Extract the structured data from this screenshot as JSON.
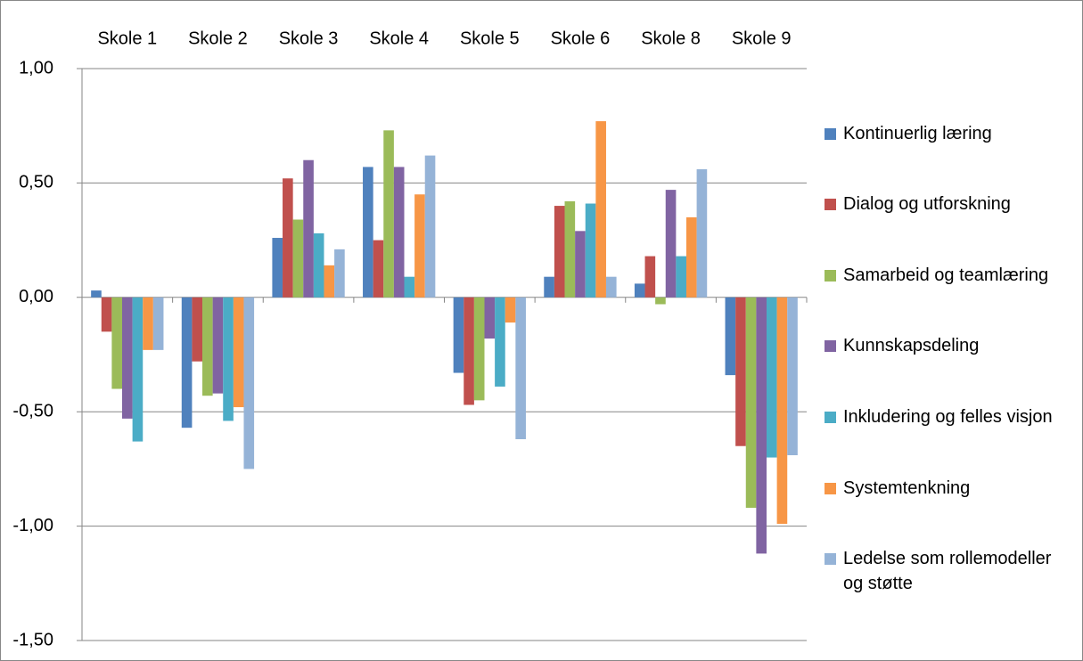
{
  "chart_data": {
    "type": "bar",
    "categories": [
      "Skole 1",
      "Skole 2",
      "Skole 3",
      "Skole 4",
      "Skole 5",
      "Skole 6",
      "Skole 8",
      "Skole 9"
    ],
    "series": [
      {
        "name": "Kontinuerlig læring",
        "color": "#4f81bd",
        "values": [
          0.03,
          -0.57,
          0.26,
          0.57,
          -0.33,
          0.09,
          0.06,
          -0.34
        ]
      },
      {
        "name": "Dialog og utforskning",
        "color": "#c0504d",
        "values": [
          -0.15,
          -0.28,
          0.52,
          0.25,
          -0.47,
          0.4,
          0.18,
          -0.65
        ]
      },
      {
        "name": "Samarbeid og teamlæring",
        "color": "#9bbb59",
        "values": [
          -0.4,
          -0.43,
          0.34,
          0.73,
          -0.45,
          0.42,
          -0.03,
          -0.92
        ]
      },
      {
        "name": "Kunnskapsdeling",
        "color": "#8064a2",
        "values": [
          -0.53,
          -0.42,
          0.6,
          0.57,
          -0.18,
          0.29,
          0.47,
          -1.12
        ]
      },
      {
        "name": "Inkludering og felles visjon",
        "color": "#4bacc6",
        "values": [
          -0.63,
          -0.54,
          0.28,
          0.09,
          -0.39,
          0.41,
          0.18,
          -0.7
        ]
      },
      {
        "name": "Systemtenkning",
        "color": "#f79646",
        "values": [
          -0.23,
          -0.48,
          0.14,
          0.45,
          -0.11,
          0.77,
          0.35,
          -0.99
        ]
      },
      {
        "name": "Ledelse som rollemodeller og støtte",
        "color": "#95b3d7",
        "values": [
          -0.23,
          -0.75,
          0.21,
          0.62,
          -0.62,
          0.09,
          0.56,
          -0.69
        ]
      }
    ],
    "ylim": [
      -1.5,
      1.0
    ],
    "yticks": [
      {
        "value": -1.5,
        "label": "-1,50"
      },
      {
        "value": -1.0,
        "label": "-1,00"
      },
      {
        "value": -0.5,
        "label": "-0,50"
      },
      {
        "value": 0,
        "label": "0,00"
      },
      {
        "value": 0.5,
        "label": "0,50"
      },
      {
        "value": 1.0,
        "label": "1,00"
      }
    ],
    "grid": true,
    "legend": "right"
  }
}
